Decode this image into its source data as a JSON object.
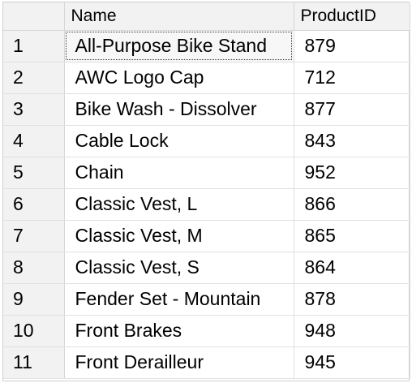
{
  "results_grid": {
    "columns": [
      "Name",
      "ProductID"
    ],
    "rows": [
      {
        "row_number": "1",
        "name": "All-Purpose Bike Stand",
        "product_id": "879"
      },
      {
        "row_number": "2",
        "name": "AWC Logo Cap",
        "product_id": "712"
      },
      {
        "row_number": "3",
        "name": "Bike Wash - Dissolver",
        "product_id": "877"
      },
      {
        "row_number": "4",
        "name": "Cable Lock",
        "product_id": "843"
      },
      {
        "row_number": "5",
        "name": "Chain",
        "product_id": "952"
      },
      {
        "row_number": "6",
        "name": "Classic Vest, L",
        "product_id": "866"
      },
      {
        "row_number": "7",
        "name": "Classic Vest, M",
        "product_id": "865"
      },
      {
        "row_number": "8",
        "name": "Classic Vest, S",
        "product_id": "864"
      },
      {
        "row_number": "9",
        "name": "Fender Set - Mountain",
        "product_id": "878"
      },
      {
        "row_number": "10",
        "name": "Front Brakes",
        "product_id": "948"
      },
      {
        "row_number": "11",
        "name": "Front Derailleur",
        "product_id": "945"
      }
    ]
  }
}
